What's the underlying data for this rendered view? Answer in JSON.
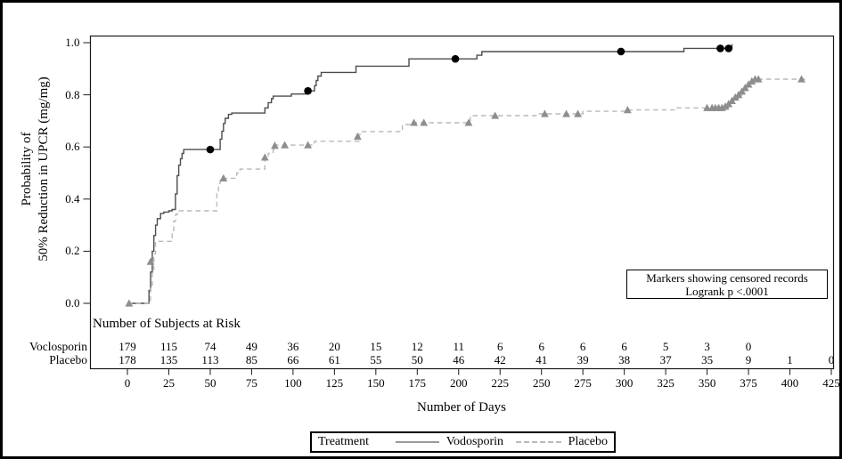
{
  "chart_data": {
    "type": "line",
    "subtype": "kaplan-meier-step",
    "title": "",
    "xlabel": "Number of Days",
    "ylabel_lines": [
      "Probability of",
      "50% Reduction in UPCR (mg/mg)"
    ],
    "xlim": [
      0,
      425
    ],
    "ylim": [
      0.0,
      1.0
    ],
    "grid": false,
    "xticks": [
      0,
      25,
      50,
      75,
      100,
      125,
      150,
      175,
      200,
      225,
      250,
      275,
      300,
      325,
      350,
      375,
      400,
      425
    ],
    "ytick_labels": [
      "0.0",
      "0.2",
      "0.4",
      "0.6",
      "0.8",
      "1.0"
    ],
    "annotation": {
      "line1": "Markers showing censored records",
      "line2": "Logrank p <.0001"
    },
    "series": [
      {
        "name": "Vodosporin",
        "line_style": "solid",
        "line_color": "#4d4d4d",
        "marker": "filled-circle",
        "marker_color": "#000000",
        "steps": [
          [
            0,
            0
          ],
          [
            12,
            0
          ],
          [
            13,
            0.05
          ],
          [
            14,
            0.12
          ],
          [
            15,
            0.2
          ],
          [
            16,
            0.26
          ],
          [
            17,
            0.3
          ],
          [
            18,
            0.325
          ],
          [
            20,
            0.345
          ],
          [
            22,
            0.35
          ],
          [
            25,
            0.355
          ],
          [
            27,
            0.36
          ],
          [
            29,
            0.42
          ],
          [
            30,
            0.49
          ],
          [
            31,
            0.53
          ],
          [
            32,
            0.555
          ],
          [
            33,
            0.575
          ],
          [
            34,
            0.59
          ],
          [
            55,
            0.59
          ],
          [
            56,
            0.63
          ],
          [
            57,
            0.66
          ],
          [
            58,
            0.69
          ],
          [
            59,
            0.71
          ],
          [
            61,
            0.725
          ],
          [
            63,
            0.73
          ],
          [
            82,
            0.73
          ],
          [
            83,
            0.75
          ],
          [
            85,
            0.77
          ],
          [
            87,
            0.785
          ],
          [
            88,
            0.795
          ],
          [
            99,
            0.803
          ],
          [
            108,
            0.815
          ],
          [
            112,
            0.815
          ],
          [
            113,
            0.835
          ],
          [
            114,
            0.855
          ],
          [
            115,
            0.872
          ],
          [
            117,
            0.886
          ],
          [
            137,
            0.886
          ],
          [
            138,
            0.91
          ],
          [
            169,
            0.91
          ],
          [
            170,
            0.938
          ],
          [
            210,
            0.938
          ],
          [
            211,
            0.952
          ],
          [
            214,
            0.966
          ],
          [
            335,
            0.966
          ],
          [
            336,
            0.978
          ],
          [
            364,
            0.978
          ],
          [
            365,
            0.995
          ]
        ],
        "censored": [
          [
            50,
            0.59
          ],
          [
            109,
            0.815
          ],
          [
            198,
            0.938
          ],
          [
            298,
            0.966
          ],
          [
            358,
            0.978
          ],
          [
            363,
            0.978
          ]
        ]
      },
      {
        "name": "Placebo",
        "line_style": "dashed",
        "line_color": "#b9b9b9",
        "marker": "filled-triangle",
        "marker_color": "#8e8e8e",
        "steps": [
          [
            0,
            0
          ],
          [
            13,
            0
          ],
          [
            14,
            0.07
          ],
          [
            15,
            0.13
          ],
          [
            16,
            0.19
          ],
          [
            17,
            0.238
          ],
          [
            26,
            0.238
          ],
          [
            27,
            0.28
          ],
          [
            28,
            0.315
          ],
          [
            29,
            0.34
          ],
          [
            30,
            0.355
          ],
          [
            53,
            0.355
          ],
          [
            54,
            0.42
          ],
          [
            55,
            0.46
          ],
          [
            56,
            0.475
          ],
          [
            58,
            0.48
          ],
          [
            64,
            0.48
          ],
          [
            66,
            0.5
          ],
          [
            68,
            0.515
          ],
          [
            81,
            0.515
          ],
          [
            83,
            0.55
          ],
          [
            85,
            0.575
          ],
          [
            88,
            0.59
          ],
          [
            90,
            0.607
          ],
          [
            112,
            0.607
          ],
          [
            113,
            0.622
          ],
          [
            139,
            0.622
          ],
          [
            140,
            0.648
          ],
          [
            141,
            0.659
          ],
          [
            165,
            0.659
          ],
          [
            166,
            0.686
          ],
          [
            171,
            0.693
          ],
          [
            206,
            0.693
          ],
          [
            207,
            0.72
          ],
          [
            246,
            0.72
          ],
          [
            248,
            0.727
          ],
          [
            273,
            0.727
          ],
          [
            275,
            0.737
          ],
          [
            301,
            0.737
          ],
          [
            303,
            0.742
          ],
          [
            330,
            0.742
          ],
          [
            332,
            0.75
          ],
          [
            361,
            0.75
          ],
          [
            363,
            0.762
          ],
          [
            365,
            0.774
          ],
          [
            367,
            0.786
          ],
          [
            369,
            0.798
          ],
          [
            371,
            0.81
          ],
          [
            373,
            0.824
          ],
          [
            375,
            0.838
          ],
          [
            376,
            0.85
          ],
          [
            378,
            0.86
          ],
          [
            410,
            0.86
          ]
        ],
        "censored": [
          [
            1,
            0
          ],
          [
            14,
            0.16
          ],
          [
            58,
            0.48
          ],
          [
            83,
            0.56
          ],
          [
            89,
            0.605
          ],
          [
            95,
            0.607
          ],
          [
            109,
            0.607
          ],
          [
            139,
            0.64
          ],
          [
            173,
            0.693
          ],
          [
            179,
            0.693
          ],
          [
            206,
            0.693
          ],
          [
            222,
            0.72
          ],
          [
            252,
            0.727
          ],
          [
            265,
            0.727
          ],
          [
            272,
            0.727
          ],
          [
            302,
            0.742
          ],
          [
            350,
            0.75
          ],
          [
            353,
            0.75
          ],
          [
            355,
            0.75
          ],
          [
            357,
            0.75
          ],
          [
            359,
            0.75
          ],
          [
            361,
            0.755
          ],
          [
            363,
            0.765
          ],
          [
            365,
            0.777
          ],
          [
            367,
            0.79
          ],
          [
            369,
            0.8
          ],
          [
            371,
            0.813
          ],
          [
            373,
            0.827
          ],
          [
            375,
            0.84
          ],
          [
            377,
            0.852
          ],
          [
            379,
            0.86
          ],
          [
            381,
            0.86
          ],
          [
            407,
            0.86
          ]
        ]
      }
    ]
  },
  "risk_table": {
    "title": "Number of Subjects at Risk",
    "days": [
      0,
      25,
      50,
      75,
      100,
      125,
      150,
      175,
      200,
      225,
      250,
      275,
      300,
      325,
      350,
      375,
      400,
      425
    ],
    "rows": [
      {
        "label": "Voclosporin",
        "counts": [
          179,
          115,
          74,
          49,
          36,
          20,
          15,
          12,
          11,
          6,
          6,
          6,
          6,
          5,
          3,
          0,
          "",
          ""
        ]
      },
      {
        "label": "Placebo",
        "counts": [
          178,
          135,
          113,
          85,
          66,
          61,
          55,
          50,
          46,
          42,
          41,
          39,
          38,
          37,
          35,
          9,
          1,
          0
        ]
      }
    ]
  },
  "legend": {
    "title": "Treatment",
    "items": [
      {
        "label": "Vodosporin",
        "style": "solid"
      },
      {
        "label": "Placebo",
        "style": "dashed"
      }
    ]
  },
  "colors": {
    "frame": "#1a1a1a",
    "text": "#000000",
    "vodosporin_line": "#4d4d4d",
    "vodosporin_marker": "#000000",
    "placebo_line": "#b9b9b9",
    "placebo_marker": "#8e8e8e"
  }
}
